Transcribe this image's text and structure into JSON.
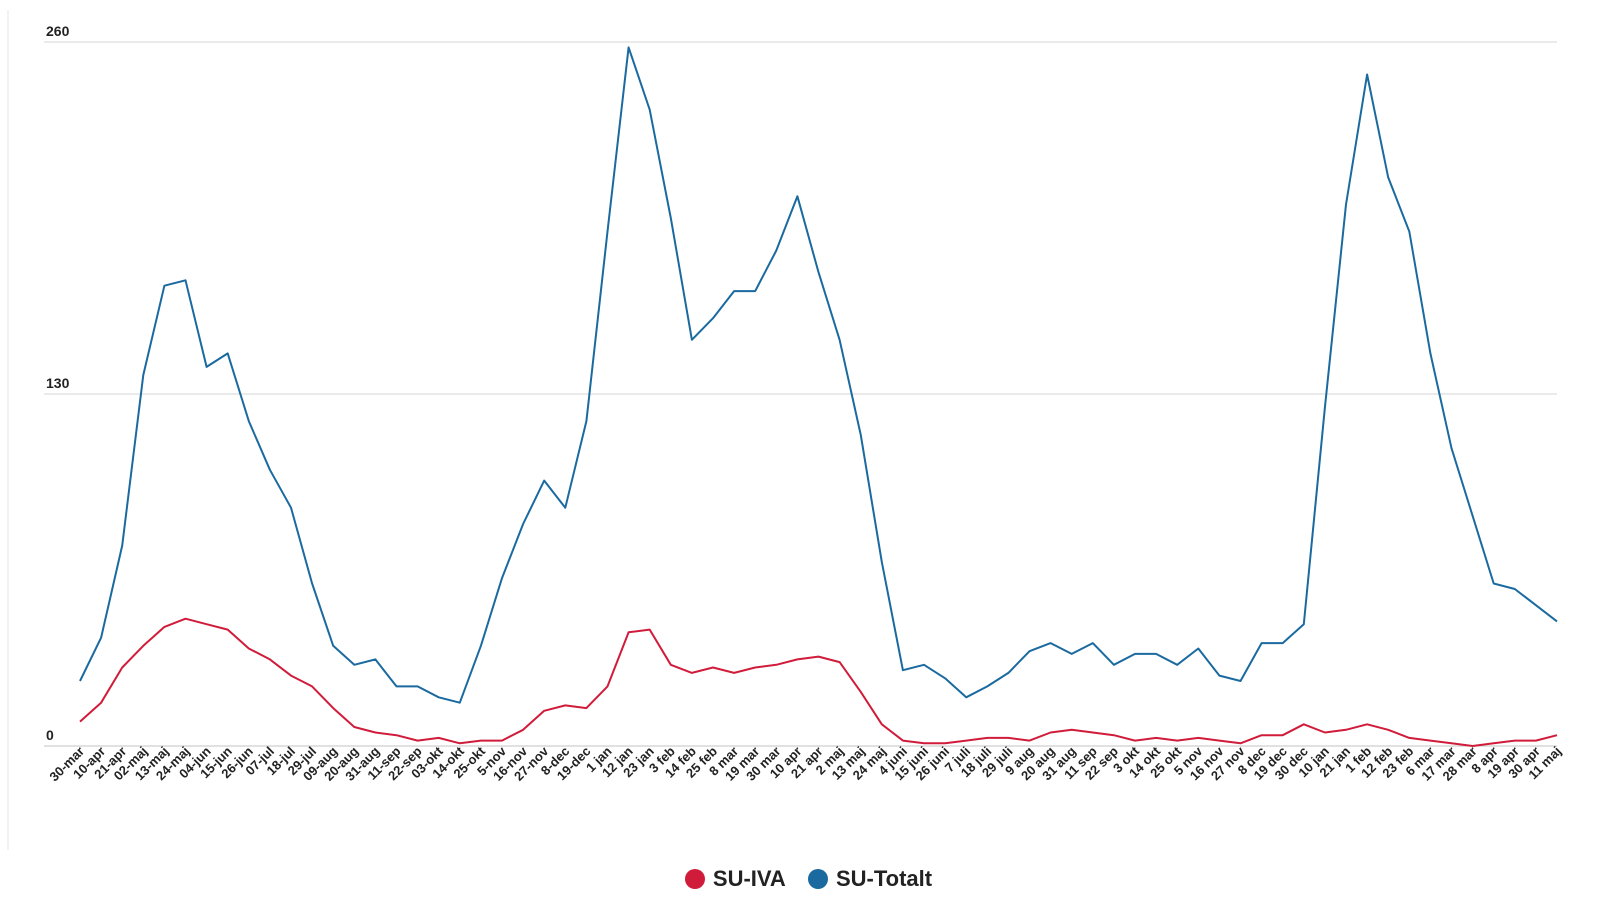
{
  "chart_data": {
    "type": "line",
    "title": "",
    "xlabel": "",
    "ylabel": "",
    "ylim": [
      0,
      260
    ],
    "yticks": [
      "0",
      "130",
      "260"
    ],
    "grid": true,
    "legend_position": "bottom-center",
    "categories": [
      "30-mar",
      "10-apr",
      "21-apr",
      "02-maj",
      "13-maj",
      "24-maj",
      "04-jun",
      "15-jun",
      "26-jun",
      "07-jul",
      "18-jul",
      "29-jul",
      "09-aug",
      "20-aug",
      "31-aug",
      "11-sep",
      "22-sep",
      "03-okt",
      "14-okt",
      "25-okt",
      "5-nov",
      "16-nov",
      "27-nov",
      "8-dec",
      "19-dec",
      "1 jan",
      "12 jan",
      "23 jan",
      "3 feb",
      "14 feb",
      "25 feb",
      "8 mar",
      "19 mar",
      "30 mar",
      "10 apr",
      "21 apr",
      "2 maj",
      "13 maj",
      "24 maj",
      "4 juni",
      "15 juni",
      "26 juni",
      "7 juli",
      "18 juli",
      "29 juli",
      "9 aug",
      "20 aug",
      "31 aug",
      "11 sep",
      "22 sep",
      "3 okt",
      "14 okt",
      "25 okt",
      "5 nov",
      "16 nov",
      "27 nov",
      "8 dec",
      "19 dec",
      "30 dec",
      "10 jan",
      "21 jan",
      "1 feb",
      "12 feb",
      "23 feb",
      "6 mar",
      "17 mar",
      "28 mar",
      "8 apr",
      "19 apr",
      "30 apr",
      "11 maj"
    ],
    "series": [
      {
        "name": "SU-IVA",
        "color": "#d01c3a",
        "values": [
          9,
          16,
          29,
          37,
          44,
          47,
          45,
          43,
          36,
          32,
          26,
          22,
          14,
          7,
          5,
          4,
          2,
          3,
          1,
          2,
          2,
          6,
          13,
          15,
          14,
          22,
          42,
          43,
          30,
          27,
          29,
          27,
          29,
          30,
          32,
          33,
          31,
          20,
          8,
          2,
          1,
          1,
          2,
          3,
          3,
          2,
          5,
          6,
          5,
          4,
          2,
          3,
          2,
          3,
          2,
          1,
          4,
          4,
          8,
          5,
          6,
          8,
          6,
          3,
          2,
          1,
          0,
          1,
          2,
          2,
          4
        ]
      },
      {
        "name": "SU-Totalt",
        "color": "#1a6aa0",
        "values": [
          24,
          40,
          74,
          137,
          170,
          172,
          140,
          145,
          120,
          102,
          88,
          60,
          37,
          30,
          32,
          22,
          22,
          18,
          16,
          37,
          62,
          82,
          98,
          88,
          120,
          190,
          258,
          235,
          195,
          150,
          158,
          168,
          168,
          183,
          203,
          175,
          150,
          115,
          68,
          28,
          30,
          25,
          18,
          22,
          27,
          35,
          38,
          34,
          38,
          30,
          34,
          34,
          30,
          36,
          26,
          24,
          38,
          38,
          45,
          125,
          200,
          248,
          210,
          190,
          145,
          110,
          85,
          60,
          58,
          52,
          46
        ]
      }
    ]
  }
}
